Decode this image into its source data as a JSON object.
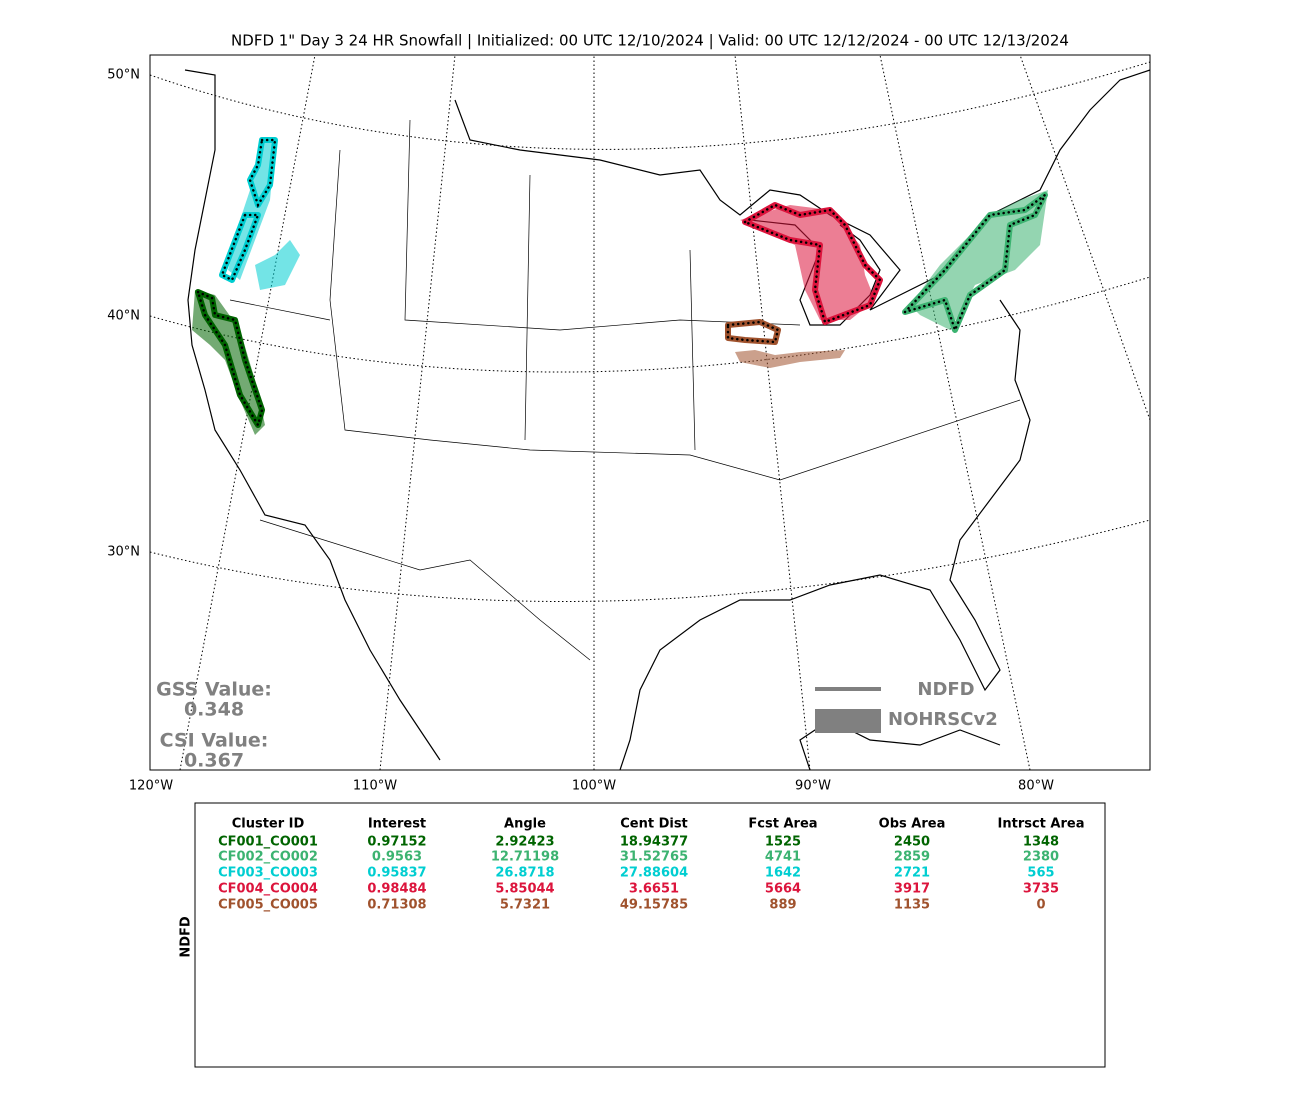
{
  "title": "NDFD 1\" Day 3 24 HR Snowfall | Initialized: 00 UTC 12/10/2024 | Valid: 00 UTC 12/12/2024 - 00 UTC 12/13/2024",
  "map": {
    "lat_labels": [
      "50°N",
      "40°N",
      "30°N"
    ],
    "lon_labels": [
      "120°W",
      "110°W",
      "100°W",
      "90°W",
      "80°W"
    ],
    "legend": [
      "NDFD",
      "NOHRSCv2"
    ],
    "gss_label": "GSS Value:",
    "gss_value": "0.348",
    "csi_label": "CSI Value:",
    "csi_value": "0.367"
  },
  "table": {
    "side_label": "NDFD",
    "columns": [
      "Cluster ID",
      "Interest",
      "Angle",
      "Cent Dist",
      "Fcst Area",
      "Obs Area",
      "Intrsct Area"
    ],
    "rows": [
      {
        "color": "#006400",
        "cells": [
          "CF001_CO001",
          "0.97152",
          "2.92423",
          "18.94377",
          "1525",
          "2450",
          "1348"
        ]
      },
      {
        "color": "#3cb371",
        "cells": [
          "CF002_CO002",
          "0.9563",
          "12.71198",
          "31.52765",
          "4741",
          "2859",
          "2380"
        ]
      },
      {
        "color": "#00ced1",
        "cells": [
          "CF003_CO003",
          "0.95837",
          "26.8718",
          "27.88604",
          "1642",
          "2721",
          "565"
        ]
      },
      {
        "color": "#dc143c",
        "cells": [
          "CF004_CO004",
          "0.98484",
          "5.85044",
          "3.6651",
          "5664",
          "3917",
          "3735"
        ]
      },
      {
        "color": "#a0522d",
        "cells": [
          "CF005_CO005",
          "0.71308",
          "5.7321",
          "49.15785",
          "889",
          "1135",
          "0"
        ]
      }
    ]
  }
}
